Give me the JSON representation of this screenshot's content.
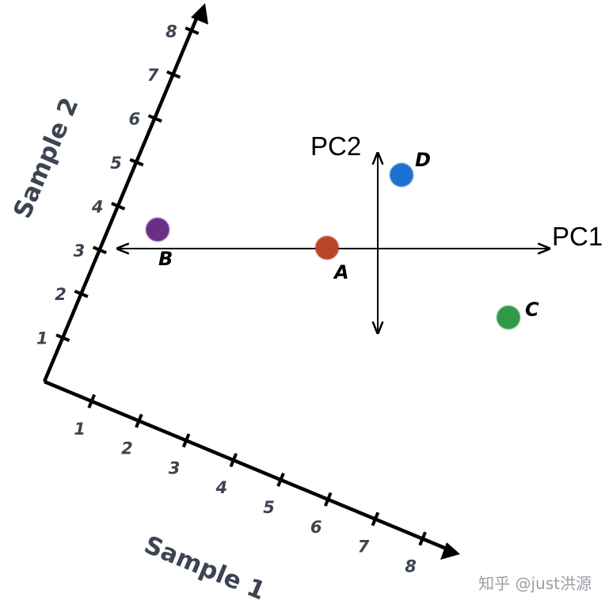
{
  "sample1_axis": {
    "title": "Sample 1",
    "ticks": [
      "1",
      "2",
      "3",
      "4",
      "5",
      "6",
      "7",
      "8"
    ]
  },
  "sample2_axis": {
    "title": "Sample 2",
    "ticks": [
      "1",
      "2",
      "3",
      "4",
      "5",
      "6",
      "7",
      "8"
    ]
  },
  "pc1_label": "PC1",
  "pc2_label": "PC2",
  "points": [
    {
      "id": "A",
      "label": "A",
      "color": "#b8452c"
    },
    {
      "id": "B",
      "label": "B",
      "color": "#6a2d84"
    },
    {
      "id": "C",
      "label": "C",
      "color": "#2f9a47"
    },
    {
      "id": "D",
      "label": "D",
      "color": "#1a6fcf"
    }
  ],
  "watermark": "知乎 @just洪源"
}
